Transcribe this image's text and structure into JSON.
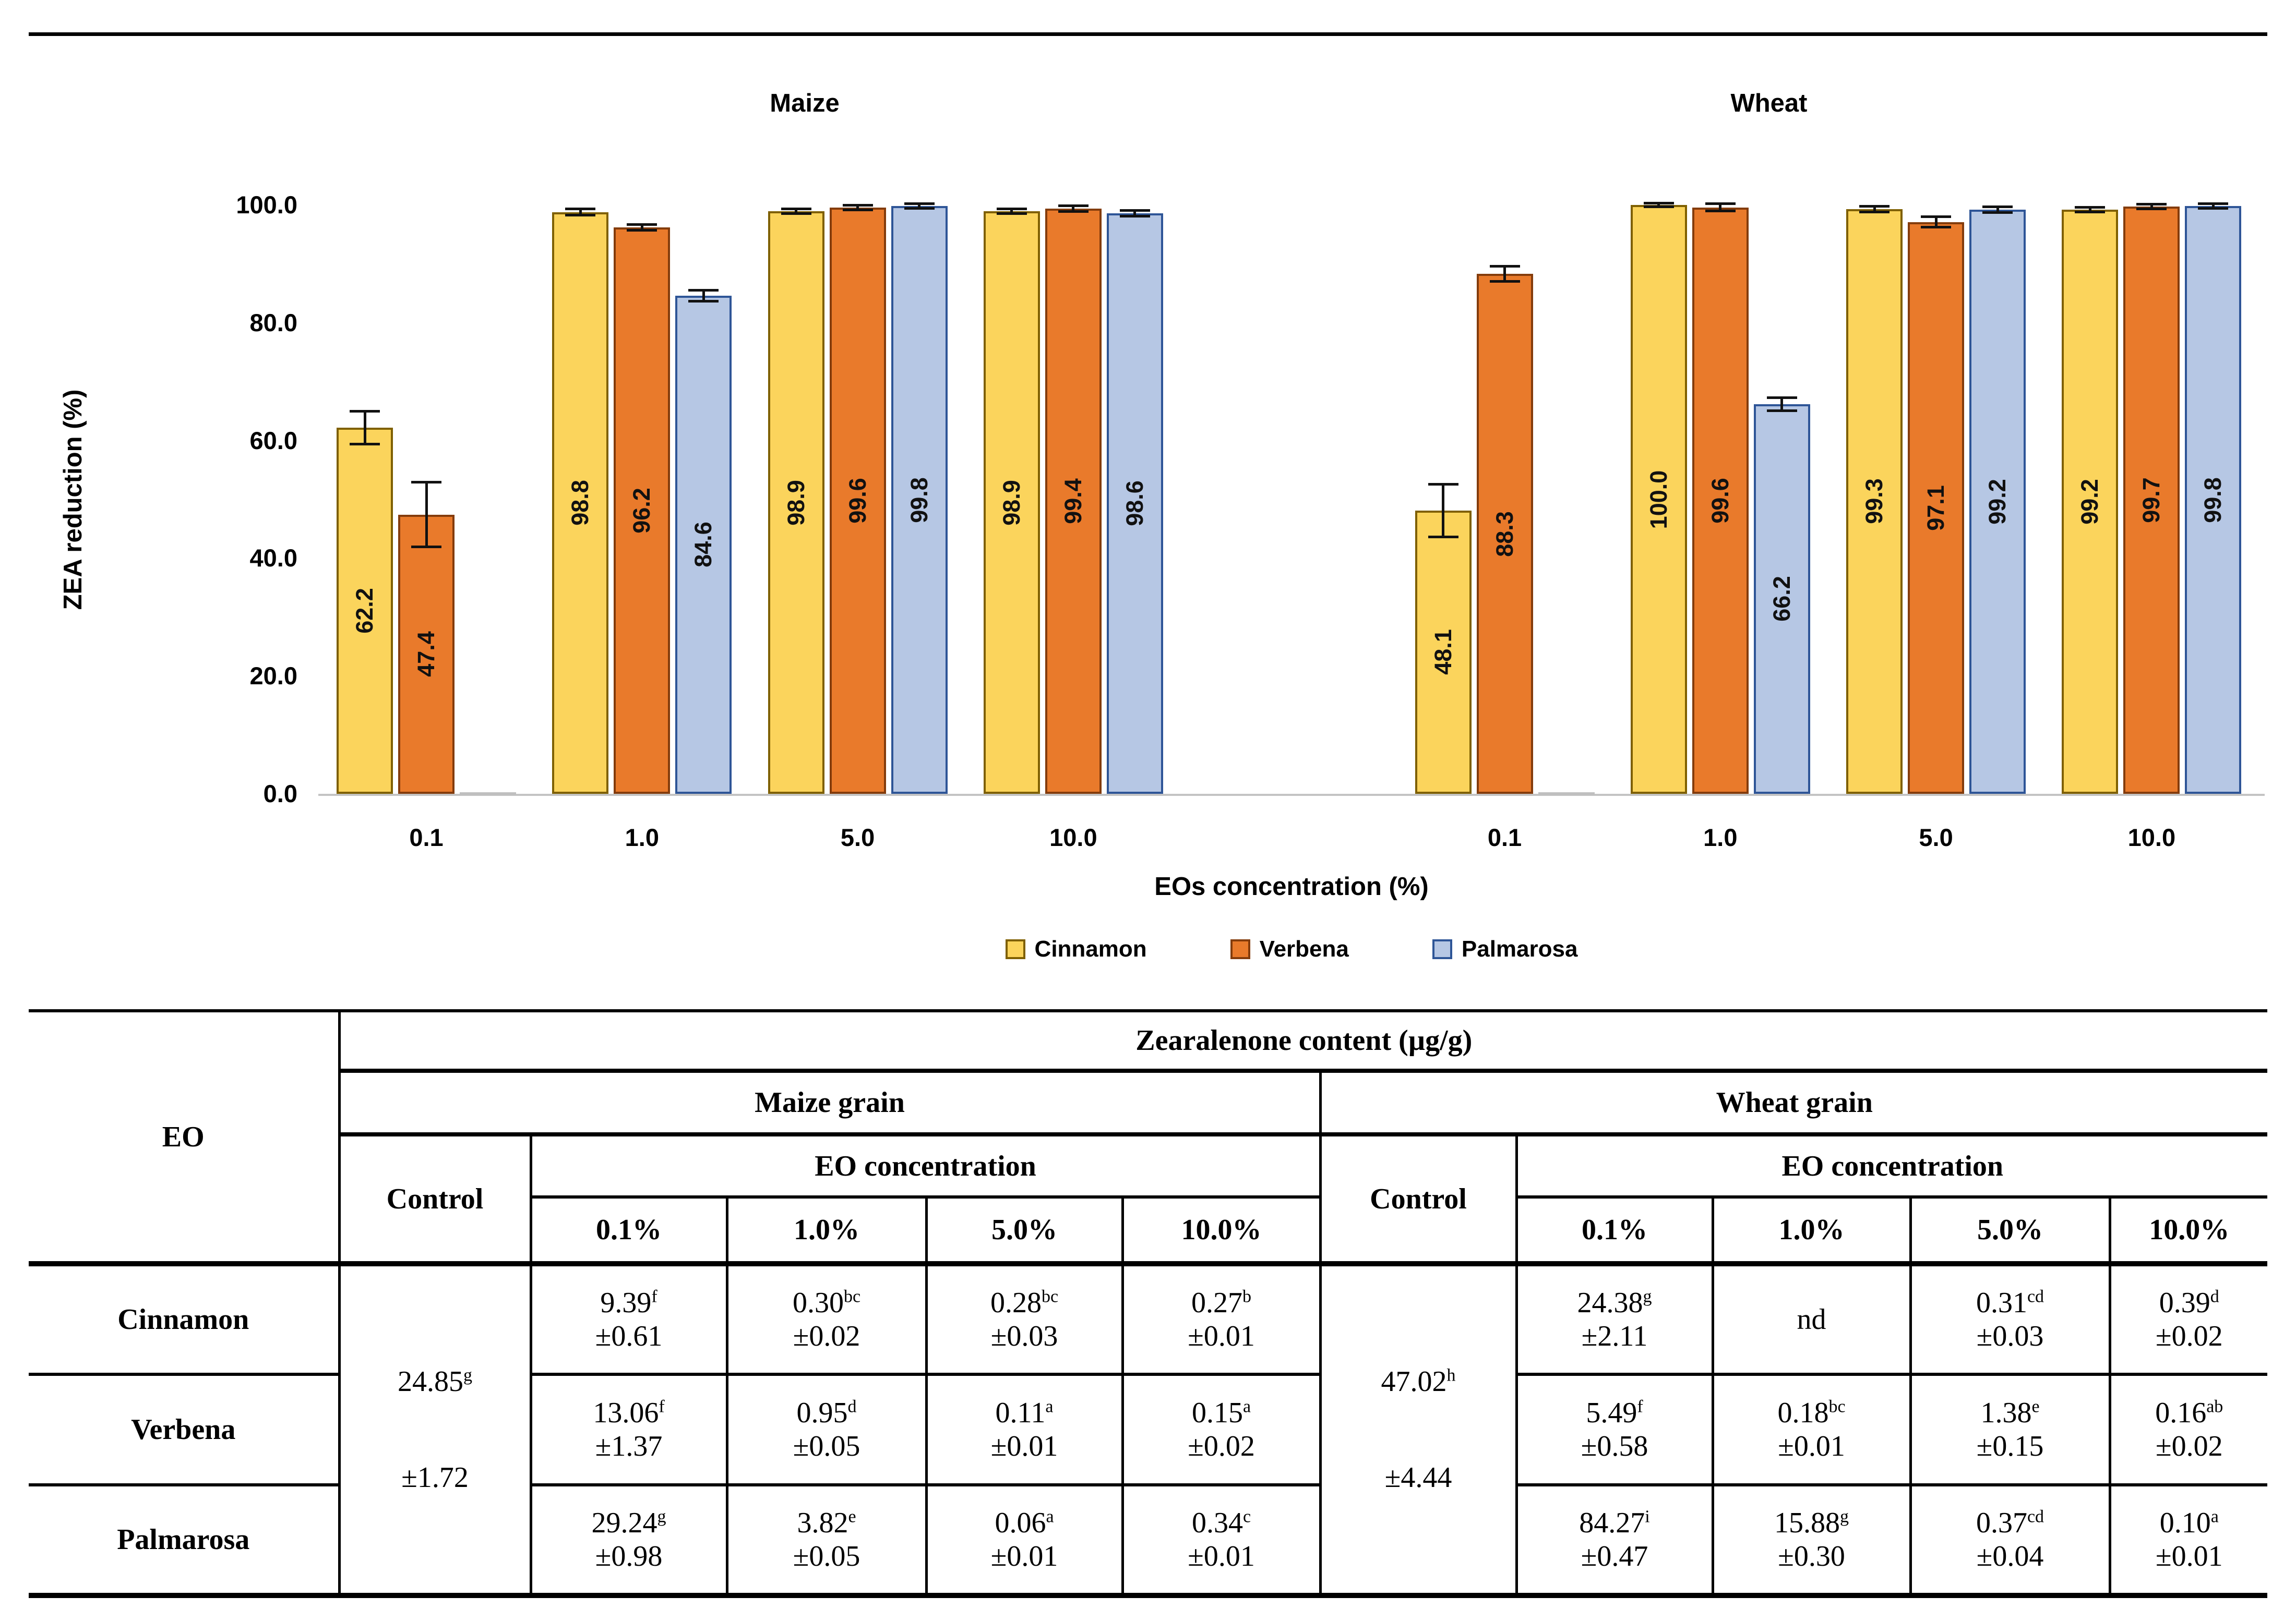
{
  "figure_top_border_color": "#000000",
  "chart_data": {
    "type": "bar",
    "ylabel": "ZEA reduction (%)",
    "xlabel": "EOs concentration (%)",
    "ylim": [
      0,
      100
    ],
    "yticks": [
      0,
      20,
      40,
      60,
      80,
      100
    ],
    "ytick_labels": [
      "0.0",
      "20.0",
      "40.0",
      "60.0",
      "80.0",
      "100.0"
    ],
    "grid": false,
    "legend_position": "bottom",
    "panels": [
      {
        "title": "Maize",
        "categories": [
          "0.1",
          "1.0",
          "5.0",
          "10.0"
        ],
        "series": [
          {
            "name": "Cinnamon",
            "values": [
              62.2,
              98.8,
              98.9,
              98.9
            ],
            "errors": [
              2.8,
              0.5,
              0.4,
              0.4
            ]
          },
          {
            "name": "Verbena",
            "values": [
              47.4,
              96.2,
              99.6,
              99.4
            ],
            "errors": [
              5.5,
              0.5,
              0.4,
              0.5
            ]
          },
          {
            "name": "Palmarosa",
            "values": [
              0.0,
              84.6,
              99.8,
              98.6
            ],
            "errors": [
              0.0,
              0.9,
              0.4,
              0.5
            ]
          }
        ]
      },
      {
        "title": "Wheat",
        "categories": [
          "0.1",
          "1.0",
          "5.0",
          "10.0"
        ],
        "series": [
          {
            "name": "Cinnamon",
            "values": [
              48.1,
              100.0,
              99.3,
              99.2
            ],
            "errors": [
              4.5,
              0.3,
              0.5,
              0.4
            ]
          },
          {
            "name": "Verbena",
            "values": [
              88.3,
              99.6,
              97.1,
              99.7
            ],
            "errors": [
              1.3,
              0.6,
              0.9,
              0.4
            ]
          },
          {
            "name": "Palmarosa",
            "values": [
              0.0,
              66.2,
              99.2,
              99.8
            ],
            "errors": [
              0.0,
              1.1,
              0.5,
              0.4
            ]
          }
        ]
      }
    ]
  },
  "legend": [
    {
      "label": "Cinnamon",
      "color": "#FBD45C",
      "border": "#7F6000"
    },
    {
      "label": "Verbena",
      "color": "#E97A2B",
      "border": "#843C0C"
    },
    {
      "label": "Palmarosa",
      "color": "#B6C7E4",
      "border": "#2E5597"
    }
  ],
  "table": {
    "title": "Zearalenone content (µg/g)",
    "row_header": "EO",
    "groups": [
      {
        "name": "Maize grain",
        "control_label": "Control",
        "conc_header": "EO concentration",
        "concentrations": [
          "0.1%",
          "1.0%",
          "5.0%",
          "10.0%"
        ],
        "control": {
          "main": "24.85",
          "sup": "g",
          "sd": "±1.72"
        }
      },
      {
        "name": "Wheat grain",
        "control_label": "Control",
        "conc_header": "EO concentration",
        "concentrations": [
          "0.1%",
          "1.0%",
          "5.0%",
          "10.0%"
        ],
        "control": {
          "main": "47.02",
          "sup": "h",
          "sd": "±4.44"
        }
      }
    ],
    "rows": [
      {
        "eo": "Cinnamon",
        "maize": [
          {
            "main": "9.39",
            "sup": "f",
            "sd": "±0.61"
          },
          {
            "main": "0.30",
            "sup": "bc",
            "sd": "±0.02"
          },
          {
            "main": "0.28",
            "sup": "bc",
            "sd": "±0.03"
          },
          {
            "main": "0.27",
            "sup": "b",
            "sd": "±0.01"
          }
        ],
        "wheat": [
          {
            "main": "24.38",
            "sup": "g",
            "sd": "±2.11"
          },
          {
            "main": "nd"
          },
          {
            "main": "0.31",
            "sup": "cd",
            "sd": "±0.03"
          },
          {
            "main": "0.39",
            "sup": "d",
            "sd": "±0.02"
          }
        ]
      },
      {
        "eo": "Verbena",
        "maize": [
          {
            "main": "13.06",
            "sup": "f",
            "sd": "±1.37"
          },
          {
            "main": "0.95",
            "sup": "d",
            "sd": "±0.05"
          },
          {
            "main": "0.11",
            "sup": "a",
            "sd": "±0.01"
          },
          {
            "main": "0.15",
            "sup": "a",
            "sd": "±0.02"
          }
        ],
        "wheat": [
          {
            "main": "5.49",
            "sup": "f",
            "sd": "±0.58"
          },
          {
            "main": "0.18",
            "sup": "bc",
            "sd": "±0.01"
          },
          {
            "main": "1.38",
            "sup": "e",
            "sd": "±0.15"
          },
          {
            "main": "0.16",
            "sup": "ab",
            "sd": "±0.02"
          }
        ]
      },
      {
        "eo": "Palmarosa",
        "maize": [
          {
            "main": "29.24",
            "sup": "g",
            "sd": "±0.98"
          },
          {
            "main": "3.82",
            "sup": "e",
            "sd": "±0.05"
          },
          {
            "main": "0.06",
            "sup": "a",
            "sd": "±0.01"
          },
          {
            "main": "0.34",
            "sup": "c",
            "sd": "±0.01"
          }
        ],
        "wheat": [
          {
            "main": "84.27",
            "sup": "i",
            "sd": "±0.47"
          },
          {
            "main": "15.88",
            "sup": "g",
            "sd": "±0.30"
          },
          {
            "main": "0.37",
            "sup": "cd",
            "sd": "±0.04"
          },
          {
            "main": "0.10",
            "sup": "a",
            "sd": "±0.01"
          }
        ]
      }
    ]
  }
}
